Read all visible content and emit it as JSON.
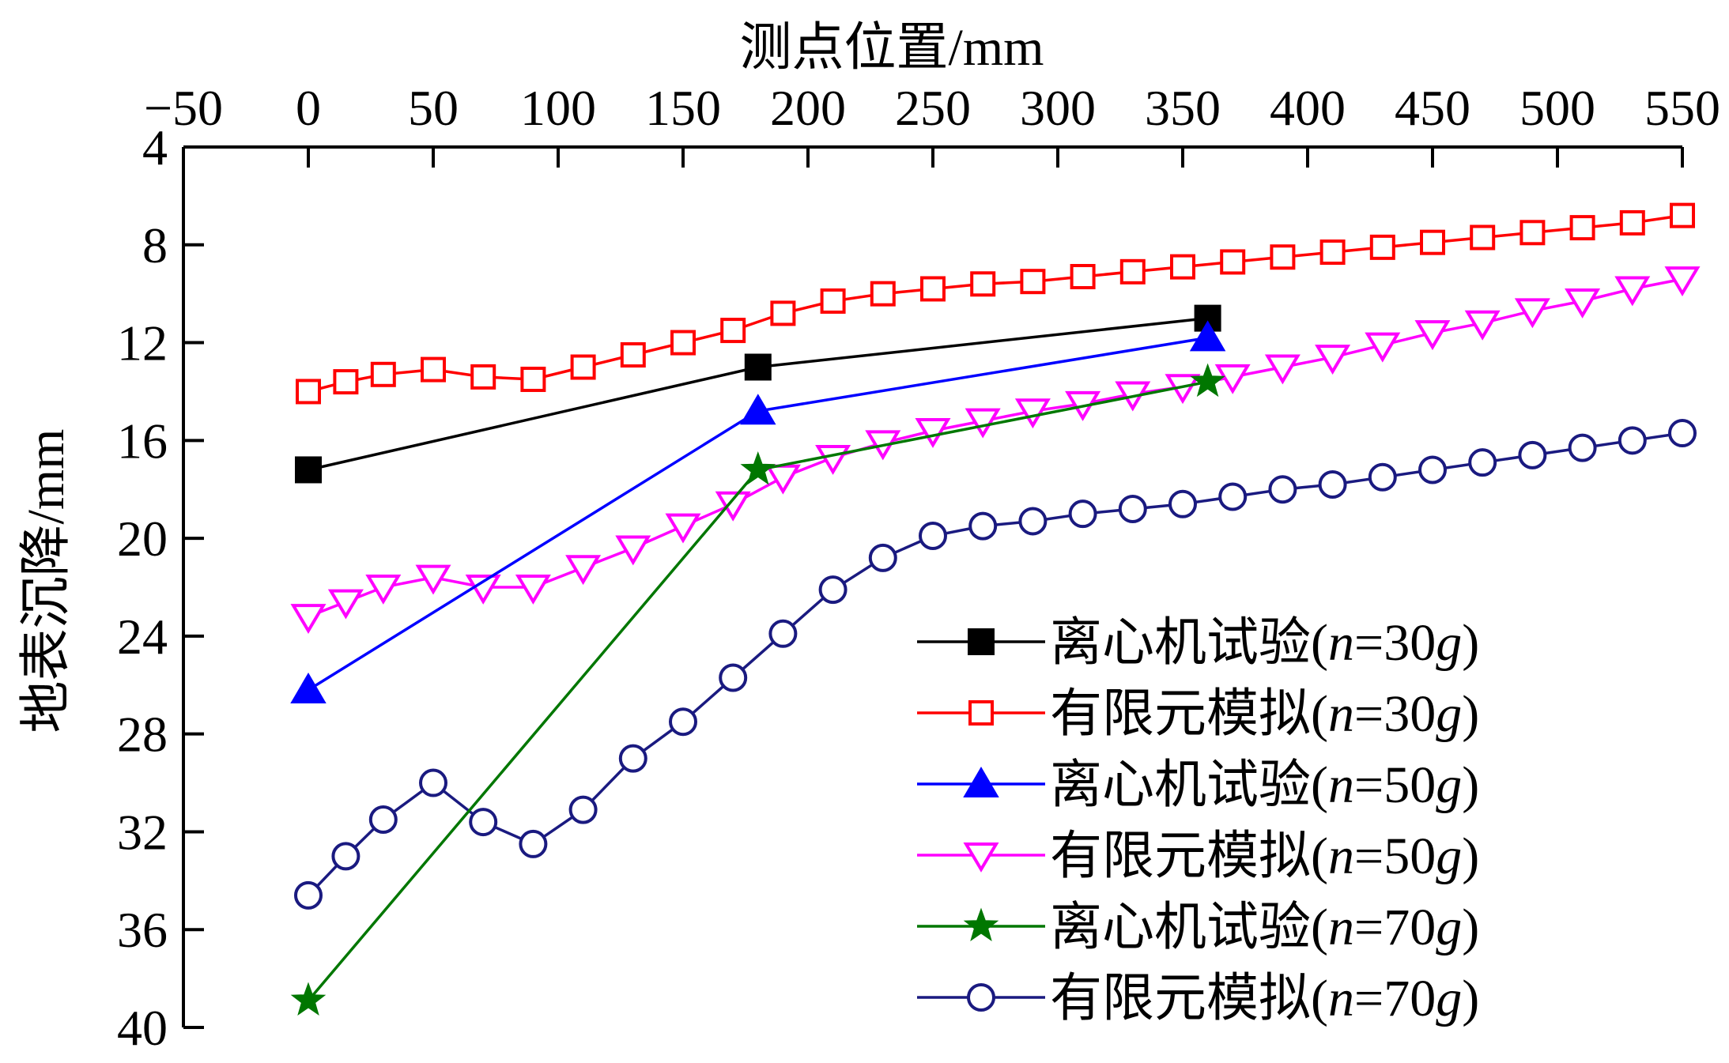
{
  "chart_data": {
    "type": "line",
    "title": "",
    "xlabel": "测点位置/mm",
    "ylabel": "地表沉降/mm",
    "x_axis_position": "top",
    "y_inverted": true,
    "xlim": [
      -50,
      550
    ],
    "ylim": [
      4,
      40
    ],
    "xticks": [
      -50,
      0,
      50,
      100,
      150,
      200,
      250,
      300,
      350,
      400,
      450,
      500,
      550
    ],
    "yticks": [
      4,
      8,
      12,
      16,
      20,
      24,
      28,
      32,
      36,
      40
    ],
    "grid": false,
    "legend_position": "bottom-right",
    "series": [
      {
        "name": "离心机试验(n=30g)",
        "color": "#000000",
        "marker": "square-filled",
        "x": [
          0,
          180,
          360
        ],
        "y": [
          17.2,
          13.0,
          11.0
        ]
      },
      {
        "name": "有限元模拟(n=30g)",
        "color": "#ff0000",
        "marker": "square-open",
        "x": [
          0,
          15,
          30,
          50,
          70,
          90,
          110,
          130,
          150,
          170,
          190,
          210,
          230,
          250,
          270,
          290,
          310,
          330,
          350,
          370,
          390,
          410,
          430,
          450,
          470,
          490,
          510,
          530,
          550
        ],
        "y": [
          14.0,
          13.6,
          13.3,
          13.1,
          13.4,
          13.5,
          13.0,
          12.5,
          12.0,
          11.5,
          10.8,
          10.3,
          10.0,
          9.8,
          9.6,
          9.5,
          9.3,
          9.1,
          8.9,
          8.7,
          8.5,
          8.3,
          8.1,
          7.9,
          7.7,
          7.5,
          7.3,
          7.1,
          6.8
        ]
      },
      {
        "name": "离心机试验(n=50g)",
        "color": "#0000ff",
        "marker": "triangle-up-filled",
        "x": [
          0,
          180,
          360
        ],
        "y": [
          26.2,
          14.8,
          11.8
        ]
      },
      {
        "name": "有限元模拟(n=50g)",
        "color": "#ff00ff",
        "marker": "triangle-down-open",
        "x": [
          0,
          15,
          30,
          50,
          70,
          90,
          110,
          130,
          150,
          170,
          190,
          210,
          230,
          250,
          270,
          290,
          310,
          330,
          350,
          370,
          390,
          410,
          430,
          450,
          470,
          490,
          510,
          530,
          550
        ],
        "y": [
          23.2,
          22.6,
          22.0,
          21.6,
          22.0,
          22.0,
          21.2,
          20.4,
          19.5,
          18.6,
          17.5,
          16.7,
          16.1,
          15.6,
          15.2,
          14.8,
          14.5,
          14.1,
          13.8,
          13.4,
          13.0,
          12.6,
          12.1,
          11.6,
          11.2,
          10.7,
          10.3,
          9.8,
          9.4
        ]
      },
      {
        "name": "离心机试验(n=70g)",
        "color": "#007700",
        "marker": "star-filled",
        "x": [
          0,
          180,
          360
        ],
        "y": [
          38.9,
          17.2,
          13.6
        ]
      },
      {
        "name": "有限元模拟(n=70g)",
        "color": "#1a1a80",
        "marker": "circle-open",
        "x": [
          0,
          15,
          30,
          50,
          70,
          90,
          110,
          130,
          150,
          170,
          190,
          210,
          230,
          250,
          270,
          290,
          310,
          330,
          350,
          370,
          390,
          410,
          430,
          450,
          470,
          490,
          510,
          530,
          550
        ],
        "y": [
          34.6,
          33.0,
          31.5,
          30.0,
          31.6,
          32.5,
          31.1,
          29.0,
          27.5,
          25.7,
          23.9,
          22.1,
          20.8,
          19.9,
          19.5,
          19.3,
          19.0,
          18.8,
          18.6,
          18.3,
          18.0,
          17.8,
          17.5,
          17.2,
          16.9,
          16.6,
          16.3,
          16.0,
          15.7
        ]
      }
    ]
  }
}
